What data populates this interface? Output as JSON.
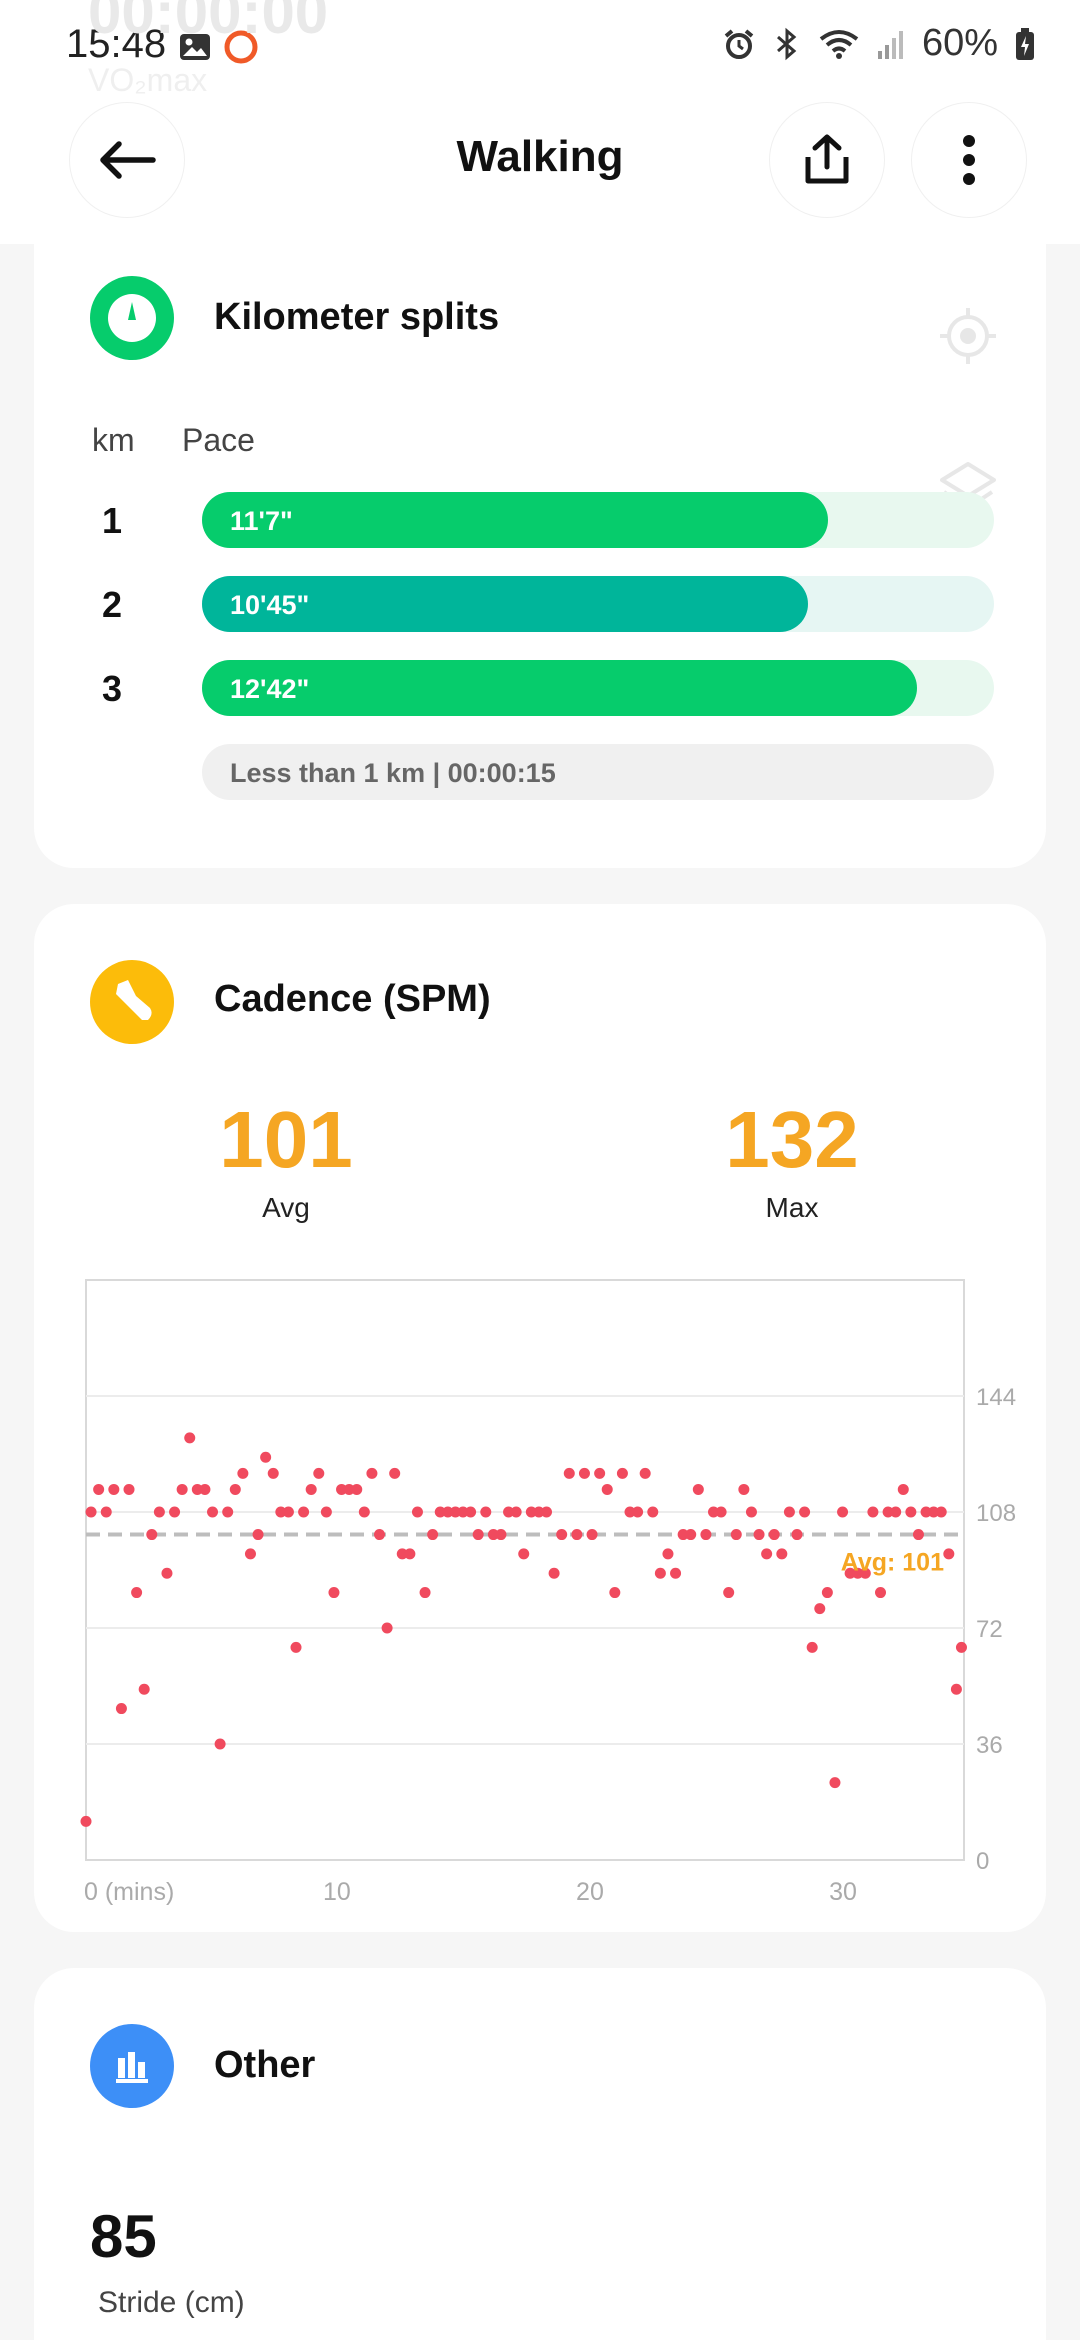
{
  "status": {
    "time": "15:48",
    "battery": "60%"
  },
  "background_ghost": {
    "timer": "00:00:00",
    "vo2": "VO₂max"
  },
  "header": {
    "title": "Walking"
  },
  "splits": {
    "title": "Kilometer splits",
    "col_km": "km",
    "col_pace": "Pace",
    "rows": [
      {
        "km": "1",
        "pace": "11'7\"",
        "fraction": 0.79,
        "color": "#06cc6c",
        "track": "#e8f8ef"
      },
      {
        "km": "2",
        "pace": "10'45\"",
        "fraction": 0.765,
        "color": "#00b59a",
        "track": "#e6f6f3"
      },
      {
        "km": "3",
        "pace": "12'42\"",
        "fraction": 0.903,
        "color": "#06cc6c",
        "track": "#e8f8ef"
      }
    ],
    "less_than": "Less than 1 km | 00:00:15"
  },
  "cadence": {
    "title": "Cadence (SPM)",
    "avg_value": "101",
    "avg_label": "Avg",
    "max_value": "132",
    "max_label": "Max",
    "chart_data": {
      "type": "scatter",
      "xlabel": "(mins)",
      "x_ticks": [
        "0 (mins)",
        "10",
        "20",
        "30"
      ],
      "y_ticks": [
        "144",
        "108",
        "72",
        "36",
        "0"
      ],
      "xlim": [
        0,
        34.7
      ],
      "ylim": [
        0,
        180
      ],
      "avg_line": 101,
      "avg_label": "Avg: 101",
      "point_color": "#f04a5e",
      "avg_color": "#f5a623",
      "points": [
        [
          0,
          12
        ],
        [
          0.2,
          108
        ],
        [
          0.5,
          115
        ],
        [
          0.8,
          108
        ],
        [
          1.1,
          115
        ],
        [
          1.4,
          47
        ],
        [
          1.7,
          115
        ],
        [
          2,
          83
        ],
        [
          2.3,
          53
        ],
        [
          2.6,
          101
        ],
        [
          2.9,
          108
        ],
        [
          3.2,
          89
        ],
        [
          3.5,
          108
        ],
        [
          3.8,
          115
        ],
        [
          4.1,
          131
        ],
        [
          4.4,
          115
        ],
        [
          4.7,
          115
        ],
        [
          5.0,
          108
        ],
        [
          5.3,
          36
        ],
        [
          5.6,
          108
        ],
        [
          5.9,
          115
        ],
        [
          6.2,
          120
        ],
        [
          6.5,
          95
        ],
        [
          6.8,
          101
        ],
        [
          7.1,
          125
        ],
        [
          7.4,
          120
        ],
        [
          7.7,
          108
        ],
        [
          8.0,
          108
        ],
        [
          8.3,
          66
        ],
        [
          8.6,
          108
        ],
        [
          8.9,
          115
        ],
        [
          9.2,
          120
        ],
        [
          9.5,
          108
        ],
        [
          9.8,
          83
        ],
        [
          10.1,
          115
        ],
        [
          10.4,
          115
        ],
        [
          10.7,
          115
        ],
        [
          11.0,
          108
        ],
        [
          11.3,
          120
        ],
        [
          11.6,
          101
        ],
        [
          11.9,
          72
        ],
        [
          12.2,
          120
        ],
        [
          12.5,
          95
        ],
        [
          12.8,
          95
        ],
        [
          13.1,
          108
        ],
        [
          13.4,
          83
        ],
        [
          13.7,
          101
        ],
        [
          14.0,
          108
        ],
        [
          14.3,
          108
        ],
        [
          14.6,
          108
        ],
        [
          14.9,
          108
        ],
        [
          15.2,
          108
        ],
        [
          15.5,
          101
        ],
        [
          15.8,
          108
        ],
        [
          16.1,
          101
        ],
        [
          16.4,
          101
        ],
        [
          16.7,
          108
        ],
        [
          17.0,
          108
        ],
        [
          17.3,
          95
        ],
        [
          17.6,
          108
        ],
        [
          17.9,
          108
        ],
        [
          18.2,
          108
        ],
        [
          18.5,
          89
        ],
        [
          18.8,
          101
        ],
        [
          19.1,
          120
        ],
        [
          19.4,
          101
        ],
        [
          19.7,
          120
        ],
        [
          20.0,
          101
        ],
        [
          20.3,
          120
        ],
        [
          20.6,
          115
        ],
        [
          20.9,
          83
        ],
        [
          21.2,
          120
        ],
        [
          21.5,
          108
        ],
        [
          21.8,
          108
        ],
        [
          22.1,
          120
        ],
        [
          22.4,
          108
        ],
        [
          22.7,
          89
        ],
        [
          23.0,
          95
        ],
        [
          23.3,
          89
        ],
        [
          23.6,
          101
        ],
        [
          23.9,
          101
        ],
        [
          24.2,
          115
        ],
        [
          24.5,
          101
        ],
        [
          24.8,
          108
        ],
        [
          25.1,
          108
        ],
        [
          25.4,
          83
        ],
        [
          25.7,
          101
        ],
        [
          26.0,
          115
        ],
        [
          26.3,
          108
        ],
        [
          26.6,
          101
        ],
        [
          26.9,
          95
        ],
        [
          27.2,
          101
        ],
        [
          27.5,
          95
        ],
        [
          27.8,
          108
        ],
        [
          28.1,
          101
        ],
        [
          28.4,
          108
        ],
        [
          28.7,
          66
        ],
        [
          29.0,
          78
        ],
        [
          29.3,
          83
        ],
        [
          29.6,
          24
        ],
        [
          29.9,
          108
        ],
        [
          30.2,
          89
        ],
        [
          30.5,
          89
        ],
        [
          30.8,
          89
        ],
        [
          31.1,
          108
        ],
        [
          31.4,
          83
        ],
        [
          31.7,
          108
        ],
        [
          32.0,
          108
        ],
        [
          32.3,
          115
        ],
        [
          32.6,
          108
        ],
        [
          32.9,
          101
        ],
        [
          33.2,
          108
        ],
        [
          33.5,
          108
        ],
        [
          33.8,
          108
        ],
        [
          34.1,
          95
        ],
        [
          34.4,
          53
        ],
        [
          34.6,
          66
        ]
      ]
    }
  },
  "other": {
    "title": "Other",
    "stride_value": "85",
    "stride_label": "Stride (cm)"
  },
  "colors": {
    "splits_icon": "#06cc6c",
    "cadence_icon": "#fcbc0a",
    "other_icon": "#3d8ff7"
  }
}
